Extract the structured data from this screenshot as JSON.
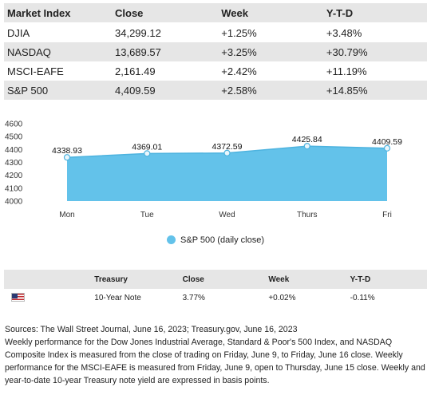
{
  "market_table": {
    "headers": [
      "Market Index",
      "Close",
      "Week",
      "Y-T-D"
    ],
    "rows": [
      [
        "DJIA",
        "34,299.12",
        "+1.25%",
        "+3.48%"
      ],
      [
        "NASDAQ",
        "13,689.57",
        "+3.25%",
        "+30.79%"
      ],
      [
        "MSCI-EAFE",
        "2,161.49",
        "+2.42%",
        "+11.19%"
      ],
      [
        "S&P 500",
        "4,409.59",
        "+2.58%",
        "+14.85%"
      ]
    ]
  },
  "chart_data": {
    "type": "area",
    "categories": [
      "Mon",
      "Tue",
      "Wed",
      "Thurs",
      "Fri"
    ],
    "series": [
      {
        "name": "S&P 500 (daily close)",
        "values": [
          4338.93,
          4369.01,
          4372.59,
          4425.84,
          4409.59
        ],
        "color": "#63c2ea"
      }
    ],
    "data_labels": [
      "4338.93",
      "4369.01",
      "4372.59",
      "4425.84",
      "4409.59"
    ],
    "yticks": [
      4000,
      4100,
      4200,
      4300,
      4400,
      4500,
      4600
    ],
    "ylim": [
      4000,
      4600
    ],
    "grid": false,
    "legend": "bottom-center",
    "line_color": "#4db3df",
    "marker_fill": "#eaf6fc"
  },
  "treasury_table": {
    "headers": [
      "",
      "Treasury",
      "Close",
      "Week",
      "Y-T-D"
    ],
    "row": {
      "flag_icon": "us-flag-icon",
      "name": "10-Year Note",
      "close": "3.77%",
      "week": "+0.02%",
      "ytd": "-0.11%"
    }
  },
  "notes": {
    "sources": "Sources: The Wall Street Journal, June 16, 2023; Treasury.gov, June 16, 2023",
    "text": "Weekly performance for the Dow Jones Industrial Average, Standard & Poor's 500 Index, and NASDAQ Composite Index is measured from the close of trading on Friday, June 9, to Friday, June 16 close. Weekly performance for the MSCI-EAFE is measured from Friday, June 9, open to Thursday, June 15 close. Weekly and year-to-date 10-year Treasury note yield are expressed in basis points."
  }
}
